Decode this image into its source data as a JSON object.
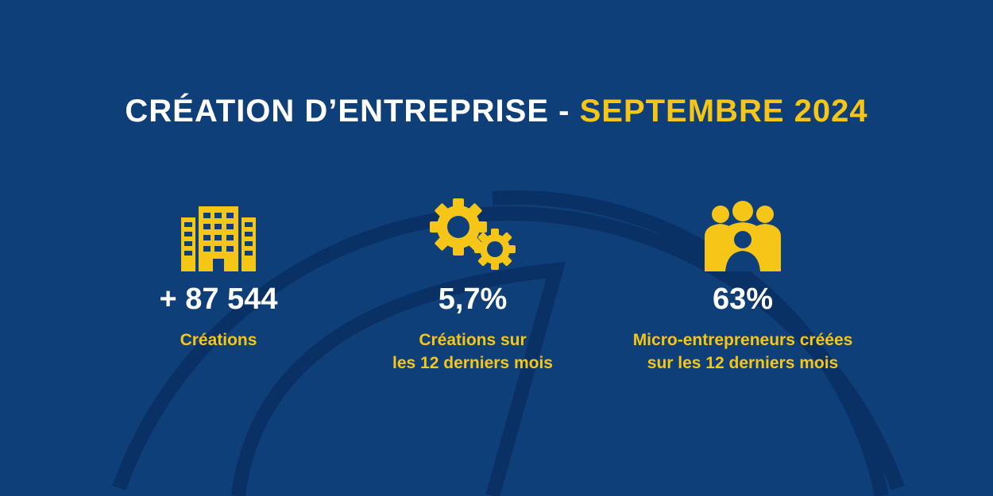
{
  "header": {
    "title_part1": "CRÉATION D’ENTREPRISE - ",
    "title_part2": "SEPTEMBRE 2024"
  },
  "stats": [
    {
      "icon": "building-icon",
      "value": "+ 87 544",
      "label_line1": "Créations",
      "label_line2": ""
    },
    {
      "icon": "gears-icon",
      "value": "5,7%",
      "label_line1": "Créations sur",
      "label_line2": "les 12 derniers mois"
    },
    {
      "icon": "people-group-icon",
      "value": "63%",
      "label_line1": "Micro-entrepreneurs créées",
      "label_line2": "sur les 12 derniers mois"
    }
  ],
  "colors": {
    "background": "#0f3f78",
    "accent": "#f5c518",
    "text": "#ffffff"
  }
}
